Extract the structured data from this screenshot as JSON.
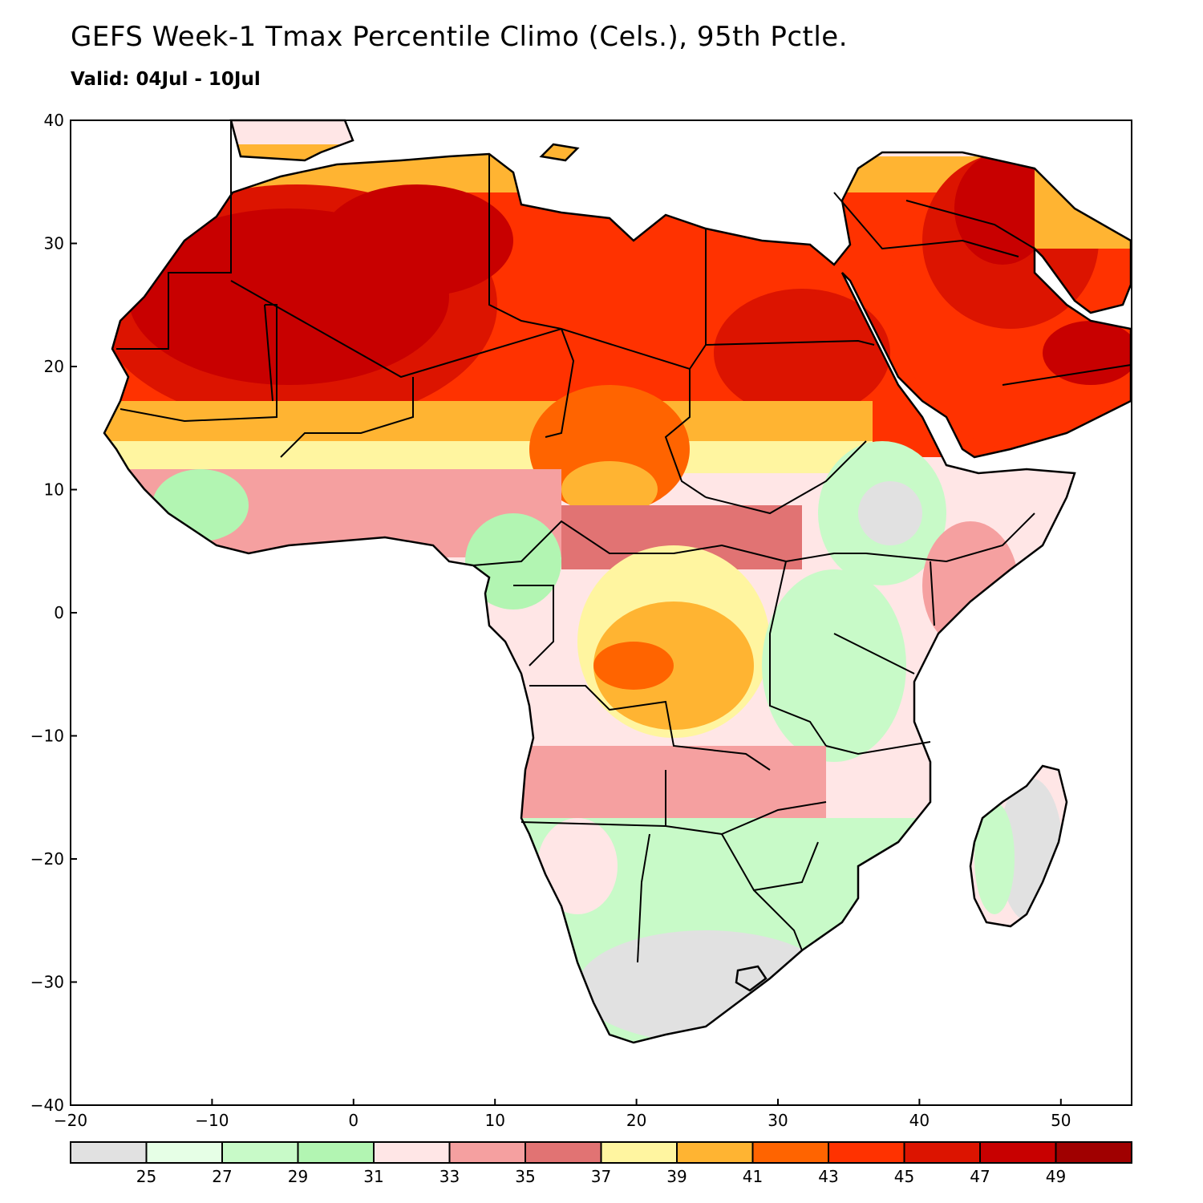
{
  "title": "GEFS Week-1 Tmax Percentile Climo (Cels.), 95th Pctle.",
  "subtitle": "Valid: 04Jul - 10Jul",
  "axes": {
    "x_ticks": [
      "−20",
      "−10",
      "0",
      "10",
      "20",
      "30",
      "40",
      "50"
    ],
    "x_values": [
      -20,
      -10,
      0,
      10,
      20,
      30,
      40,
      50
    ],
    "y_ticks": [
      "40",
      "30",
      "20",
      "10",
      "0",
      "−10",
      "−20",
      "−30",
      "−40"
    ],
    "y_values": [
      40,
      30,
      20,
      10,
      0,
      -10,
      -20,
      -30,
      -40
    ],
    "xlim": [
      -20,
      55
    ],
    "ylim": [
      -40,
      40
    ]
  },
  "colorbar": {
    "labels": [
      "25",
      "27",
      "29",
      "31",
      "33",
      "35",
      "37",
      "39",
      "41",
      "43",
      "45",
      "47",
      "49"
    ],
    "colors": [
      "#e1e1e1",
      "#e6ffe6",
      "#c8fac8",
      "#b2f5b2",
      "#ffe6e6",
      "#f5a0a0",
      "#e17373",
      "#fff5a0",
      "#ffb432",
      "#ff6400",
      "#ff3200",
      "#dc1400",
      "#c80000",
      "#a00000"
    ]
  },
  "map_colors": {
    "sahara_core": "#c80000",
    "sahara_outer": "#dc1400",
    "arabia_core": "#c80000",
    "arabia_outer": "#ff3200"
  }
}
